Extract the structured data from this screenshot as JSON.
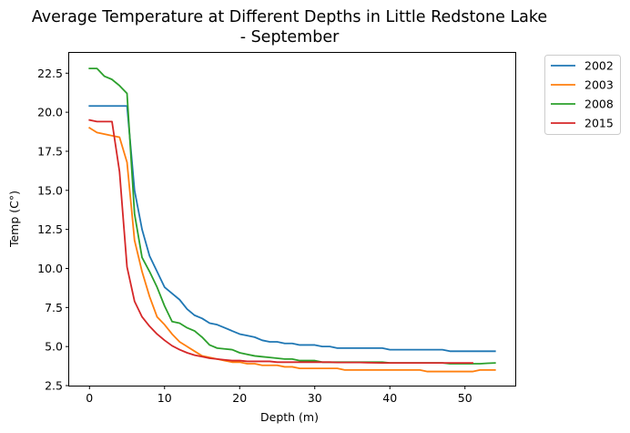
{
  "chart_data": {
    "type": "line",
    "title_line1": "Average Temperature at Different Depths in Little Redstone Lake",
    "title_line2": "- September",
    "xlabel": "Depth (m)",
    "ylabel": "Temp (C°)",
    "xlim": [
      -2.7,
      56.7
    ],
    "ylim": [
      2.5,
      23.8
    ],
    "xticks": [
      0,
      10,
      20,
      30,
      40,
      50
    ],
    "xtick_labels": [
      "0",
      "10",
      "20",
      "30",
      "40",
      "50"
    ],
    "yticks": [
      2.5,
      5.0,
      7.5,
      10.0,
      12.5,
      15.0,
      17.5,
      20.0,
      22.5
    ],
    "ytick_labels": [
      "2.5",
      "5.0",
      "7.5",
      "10.0",
      "12.5",
      "15.0",
      "17.5",
      "20.0",
      "22.5"
    ],
    "grid": false,
    "legend_position": "outside-top-right",
    "series": [
      {
        "name": "2002",
        "color": "#1f77b4",
        "x": [
          0,
          1,
          2,
          3,
          4,
          5,
          6,
          7,
          8,
          9,
          10,
          11,
          12,
          13,
          14,
          15,
          16,
          17,
          18,
          19,
          20,
          21,
          22,
          23,
          24,
          25,
          26,
          27,
          28,
          29,
          30,
          31,
          32,
          33,
          34,
          35,
          36,
          37,
          38,
          39,
          40,
          41,
          42,
          43,
          44,
          45,
          46,
          47,
          48,
          49,
          50,
          51,
          52,
          53,
          54
        ],
        "y": [
          20.4,
          20.4,
          20.4,
          20.4,
          20.4,
          20.4,
          15.0,
          12.5,
          10.8,
          9.8,
          8.8,
          8.4,
          8.0,
          7.4,
          7.0,
          6.8,
          6.5,
          6.4,
          6.2,
          6.0,
          5.8,
          5.7,
          5.6,
          5.4,
          5.3,
          5.3,
          5.2,
          5.2,
          5.1,
          5.1,
          5.1,
          5.0,
          5.0,
          4.9,
          4.9,
          4.9,
          4.9,
          4.9,
          4.9,
          4.9,
          4.8,
          4.8,
          4.8,
          4.8,
          4.8,
          4.8,
          4.8,
          4.8,
          4.7,
          4.7,
          4.7,
          4.7,
          4.7,
          4.7,
          4.7
        ]
      },
      {
        "name": "2003",
        "color": "#ff7f0e",
        "x": [
          0,
          1,
          2,
          3,
          4,
          5,
          6,
          7,
          8,
          9,
          10,
          11,
          12,
          13,
          14,
          15,
          16,
          17,
          18,
          19,
          20,
          21,
          22,
          23,
          24,
          25,
          26,
          27,
          28,
          29,
          30,
          31,
          32,
          33,
          34,
          35,
          36,
          37,
          38,
          39,
          40,
          41,
          42,
          43,
          44,
          45,
          46,
          47,
          48,
          49,
          50,
          51,
          52,
          53,
          54
        ],
        "y": [
          19.0,
          18.7,
          18.6,
          18.5,
          18.4,
          16.8,
          11.8,
          9.8,
          8.2,
          6.9,
          6.4,
          5.8,
          5.3,
          5.0,
          4.7,
          4.4,
          4.3,
          4.2,
          4.1,
          4.0,
          4.0,
          3.9,
          3.9,
          3.8,
          3.8,
          3.8,
          3.7,
          3.7,
          3.6,
          3.6,
          3.6,
          3.6,
          3.6,
          3.6,
          3.5,
          3.5,
          3.5,
          3.5,
          3.5,
          3.5,
          3.5,
          3.5,
          3.5,
          3.5,
          3.5,
          3.4,
          3.4,
          3.4,
          3.4,
          3.4,
          3.4,
          3.4,
          3.5,
          3.5,
          3.5
        ]
      },
      {
        "name": "2008",
        "color": "#2ca02c",
        "x": [
          0,
          1,
          2,
          3,
          4,
          5,
          6,
          7,
          8,
          9,
          10,
          11,
          12,
          13,
          14,
          15,
          16,
          17,
          18,
          19,
          20,
          21,
          22,
          23,
          24,
          25,
          26,
          27,
          28,
          29,
          30,
          31,
          32,
          33,
          34,
          35,
          36,
          37,
          38,
          39,
          40,
          41,
          42,
          43,
          44,
          45,
          46,
          47,
          48,
          49,
          50,
          51,
          52,
          53,
          54
        ],
        "y": [
          22.8,
          22.8,
          22.3,
          22.1,
          21.7,
          21.2,
          13.5,
          10.7,
          9.8,
          8.8,
          7.6,
          6.6,
          6.5,
          6.2,
          6.0,
          5.6,
          5.1,
          4.9,
          4.85,
          4.8,
          4.6,
          4.5,
          4.4,
          4.35,
          4.3,
          4.25,
          4.2,
          4.2,
          4.1,
          4.1,
          4.1,
          4.0,
          4.0,
          4.0,
          4.0,
          4.0,
          4.0,
          4.0,
          4.0,
          4.0,
          3.95,
          3.95,
          3.95,
          3.95,
          3.95,
          3.95,
          3.95,
          3.95,
          3.9,
          3.9,
          3.9,
          3.9,
          3.9,
          3.93,
          3.95
        ]
      },
      {
        "name": "2015",
        "color": "#d62728",
        "x": [
          0,
          1,
          2,
          3,
          4,
          5,
          6,
          7,
          8,
          9,
          10,
          11,
          12,
          13,
          14,
          15,
          16,
          17,
          18,
          19,
          20,
          21,
          22,
          23,
          24,
          25,
          26,
          27,
          28,
          29,
          30,
          31,
          32,
          33,
          34,
          35,
          36,
          37,
          38,
          39,
          40,
          41,
          42,
          43,
          44,
          45,
          46,
          47,
          48,
          49,
          50,
          51
        ],
        "y": [
          19.5,
          19.4,
          19.4,
          19.4,
          16.2,
          10.1,
          7.9,
          6.9,
          6.3,
          5.8,
          5.4,
          5.05,
          4.8,
          4.6,
          4.45,
          4.35,
          4.25,
          4.2,
          4.15,
          4.1,
          4.1,
          4.05,
          4.05,
          4.05,
          4.05,
          4.0,
          4.0,
          4.0,
          4.0,
          4.0,
          4.0,
          4.0,
          4.0,
          3.98,
          3.98,
          3.98,
          3.98,
          3.97,
          3.96,
          3.95,
          3.95,
          3.95,
          3.95,
          3.95,
          3.95,
          3.95,
          3.95,
          3.95,
          3.95,
          3.95,
          3.95,
          3.95
        ]
      }
    ]
  }
}
